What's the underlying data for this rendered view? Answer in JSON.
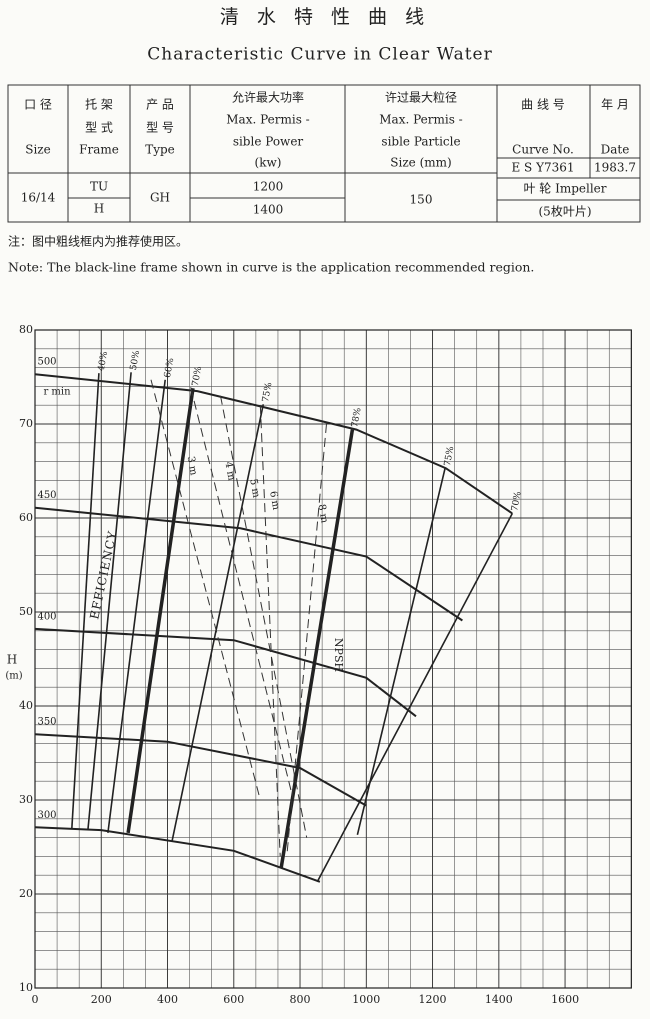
{
  "header": {
    "title_cn": "清 水 特 性 曲 线",
    "title_en": "Characteristic  Curve  in  Clear  Water"
  },
  "table": {
    "headers": [
      [
        "口 径",
        "Size"
      ],
      [
        "托 架",
        "型 式",
        "Frame"
      ],
      [
        "产 品",
        "型 号",
        "Type"
      ],
      [
        "允许最大功率",
        "Max. Permis -",
        "sible Power",
        "(kw)"
      ],
      [
        "许过最大粒径",
        "Max. Permis -",
        "sible Particle",
        "Size  (mm)"
      ],
      [
        "曲 线 号",
        "Curve No."
      ],
      [
        "年 月",
        "Date"
      ]
    ],
    "row": {
      "size": "16/14",
      "frame": [
        "TU",
        "H"
      ],
      "type": "GH",
      "power": [
        "1200",
        "1400"
      ],
      "particle": "150",
      "curve_no": "E S Y7361",
      "date": "1983.7",
      "impeller": [
        "叶 轮  Impeller",
        "(5枚叶片)"
      ]
    }
  },
  "note": {
    "cn": "注：图中粗线框内为推荐使用区。",
    "en": "Note: The black-line frame shown in curve is the application recommended region."
  },
  "chart_data": {
    "type": "line",
    "y_label": "H",
    "y_unit": "(m)",
    "speed_unit": "r min",
    "xlim": [
      0,
      1800
    ],
    "ylim": [
      10,
      80
    ],
    "xticks": [
      0,
      200,
      400,
      600,
      800,
      1000,
      1200,
      1400,
      1600
    ],
    "yticks": [
      10,
      20,
      30,
      40,
      50,
      60,
      70,
      80
    ],
    "grid": true,
    "series": [
      {
        "name": "500",
        "color": "#222",
        "x": [
          0,
          490,
          970,
          1240,
          1440
        ],
        "values": [
          75.3,
          73.5,
          69.4,
          65.3,
          60.5
        ]
      },
      {
        "name": "450",
        "color": "#222",
        "x": [
          0,
          620,
          1000,
          1290
        ],
        "values": [
          61.1,
          58.9,
          55.9,
          49.1
        ]
      },
      {
        "name": "400",
        "color": "#222",
        "x": [
          0,
          600,
          1000,
          1150
        ],
        "values": [
          48.2,
          47,
          43,
          38.9
        ]
      },
      {
        "name": "350",
        "color": "#222",
        "x": [
          0,
          400,
          800,
          1000
        ],
        "values": [
          37,
          36.2,
          33.4,
          29.4
        ]
      },
      {
        "name": "300",
        "color": "#222",
        "x": [
          0,
          200,
          600,
          860
        ],
        "values": [
          27.1,
          26.8,
          24.6,
          21.3
        ]
      }
    ],
    "efficiency_label": "EFFICIENCY",
    "efficiency_lines": [
      {
        "name": "40%",
        "x": [
          193,
          111
        ],
        "values": [
          75.4,
          26.9
        ],
        "bold": false
      },
      {
        "name": "50%",
        "x": [
          290,
          160
        ],
        "values": [
          75.5,
          26.9
        ],
        "bold": false
      },
      {
        "name": "60%",
        "x": [
          393,
          220
        ],
        "values": [
          74.7,
          26.5
        ],
        "bold": false
      },
      {
        "name": "70%",
        "x": [
          477,
          281
        ],
        "values": [
          73.8,
          26.5
        ],
        "bold": true
      },
      {
        "name": "75%",
        "x": [
          689,
          414
        ],
        "values": [
          72.1,
          25.7
        ],
        "bold": false
      },
      {
        "name": "78%",
        "x": [
          958,
          743
        ],
        "values": [
          69.4,
          22.8
        ],
        "bold": true
      },
      {
        "name": "75%",
        "x": [
          1238,
          973
        ],
        "values": [
          65.3,
          26.3
        ],
        "bold": false
      },
      {
        "name": "70%",
        "x": [
          1441,
          852
        ],
        "values": [
          60.5,
          21.3
        ],
        "bold": false
      }
    ],
    "npsh_label": "NPSH",
    "npsh_lines": [
      {
        "name": "3 m",
        "x": [
          350,
          680
        ],
        "values": [
          74.7,
          30
        ]
      },
      {
        "name": "4 m",
        "x": [
          470,
          780
        ],
        "values": [
          73.9,
          30
        ]
      },
      {
        "name": "5 m",
        "x": [
          560,
          820
        ],
        "values": [
          73,
          26
        ]
      },
      {
        "name": "6 m",
        "x": [
          680,
          740
        ],
        "values": [
          72,
          24
        ]
      },
      {
        "name": "8 m",
        "x": [
          880,
          760
        ],
        "values": [
          70,
          24
        ]
      }
    ]
  }
}
